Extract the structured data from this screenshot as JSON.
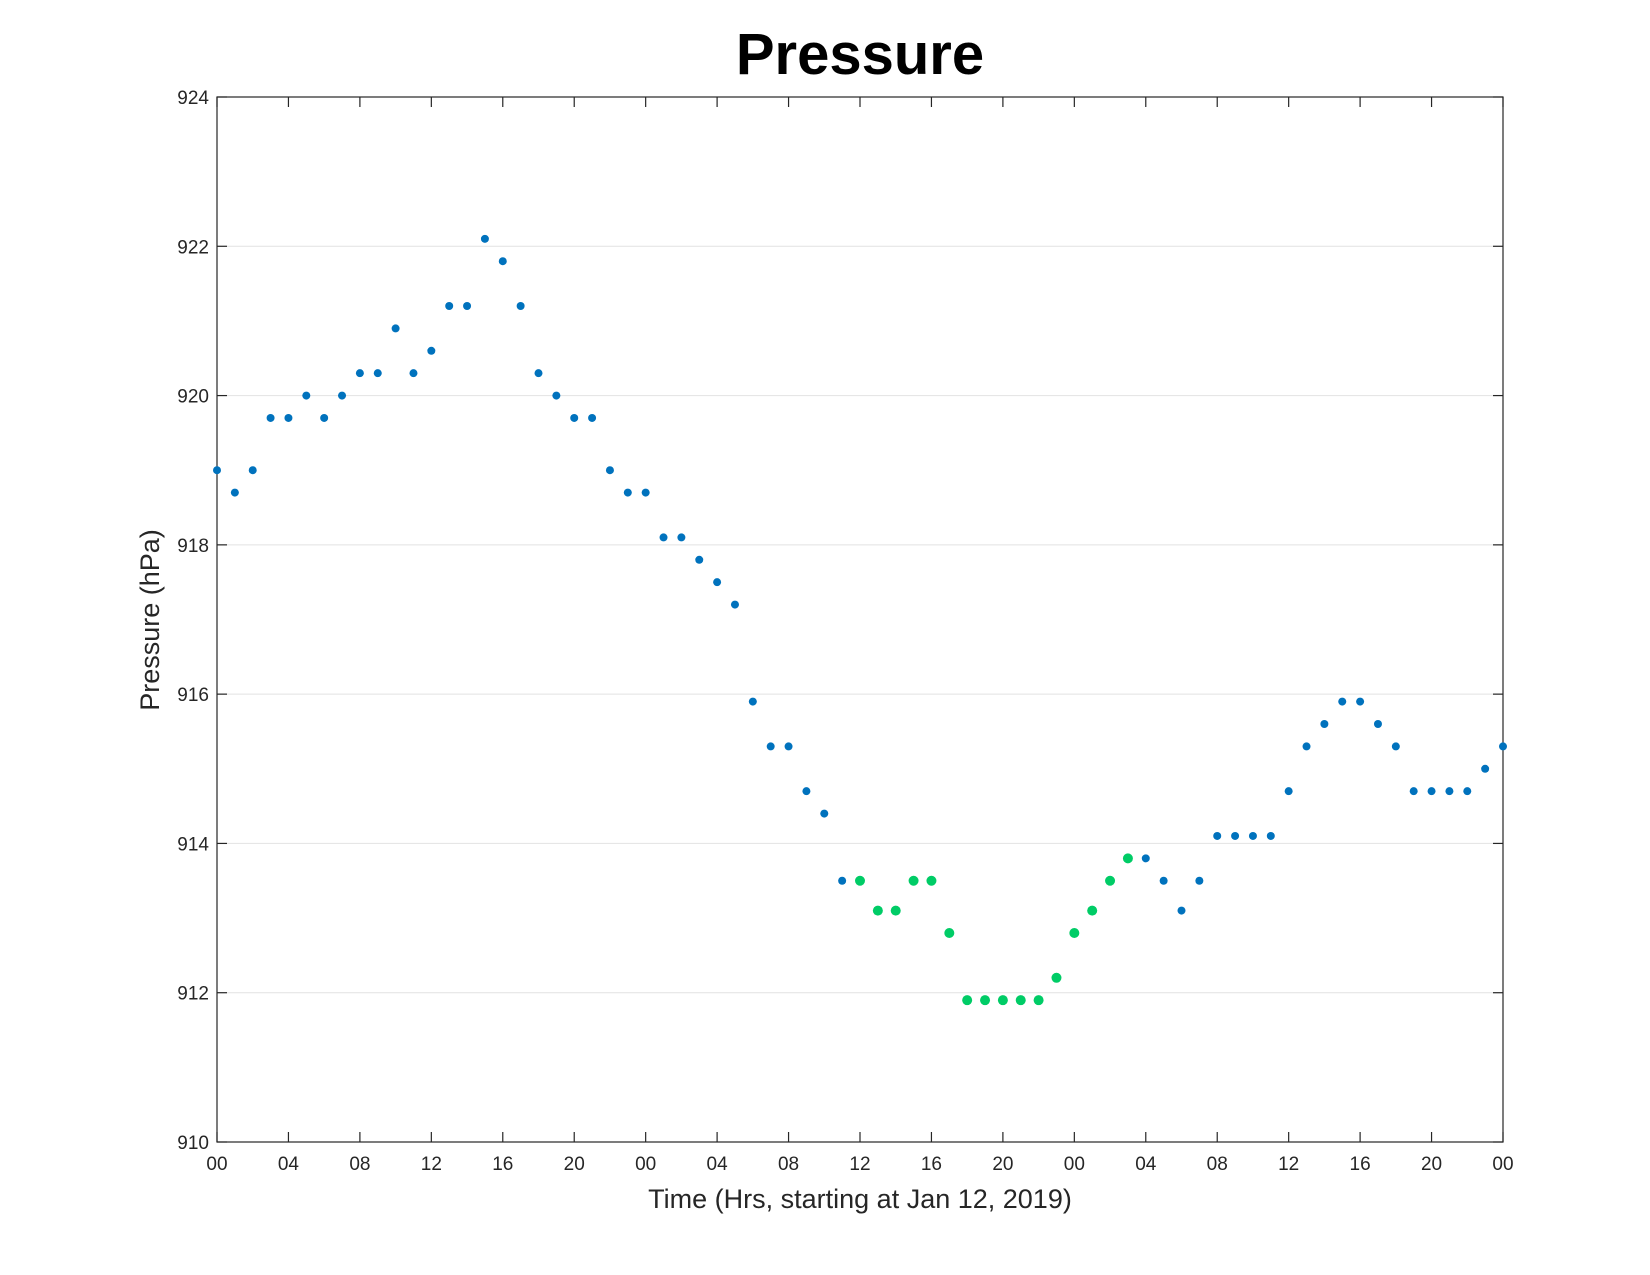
{
  "chart_data": {
    "type": "scatter",
    "title": "Pressure",
    "xlabel": "Time (Hrs, starting at Jan 12, 2019)",
    "ylabel": "Pressure (hPa)",
    "xlim": [
      0,
      72
    ],
    "ylim": [
      910,
      924
    ],
    "grid": "horizontal",
    "x_ticks": [
      0,
      4,
      8,
      12,
      16,
      20,
      24,
      28,
      32,
      36,
      40,
      44,
      48,
      52,
      56,
      60,
      64,
      68,
      72
    ],
    "x_tick_labels": [
      "00",
      "04",
      "08",
      "12",
      "16",
      "20",
      "00",
      "04",
      "08",
      "12",
      "16",
      "20",
      "00",
      "04",
      "08",
      "12",
      "16",
      "20",
      "00"
    ],
    "y_ticks": [
      910,
      912,
      914,
      916,
      918,
      920,
      922,
      924
    ],
    "y_tick_labels": [
      "910",
      "912",
      "914",
      "916",
      "918",
      "920",
      "922",
      "924"
    ],
    "colors": {
      "blue": "#0072BD",
      "green": "#00CC66"
    },
    "points": [
      {
        "x": 0,
        "y": 919.0,
        "color": "blue"
      },
      {
        "x": 1,
        "y": 918.7,
        "color": "blue"
      },
      {
        "x": 2,
        "y": 919.0,
        "color": "blue"
      },
      {
        "x": 3,
        "y": 919.7,
        "color": "blue"
      },
      {
        "x": 4,
        "y": 919.7,
        "color": "blue"
      },
      {
        "x": 5,
        "y": 920.0,
        "color": "blue"
      },
      {
        "x": 6,
        "y": 919.7,
        "color": "blue"
      },
      {
        "x": 7,
        "y": 920.0,
        "color": "blue"
      },
      {
        "x": 8,
        "y": 920.3,
        "color": "blue"
      },
      {
        "x": 9,
        "y": 920.3,
        "color": "blue"
      },
      {
        "x": 10,
        "y": 920.9,
        "color": "blue"
      },
      {
        "x": 11,
        "y": 920.3,
        "color": "blue"
      },
      {
        "x": 12,
        "y": 920.6,
        "color": "blue"
      },
      {
        "x": 13,
        "y": 921.2,
        "color": "blue"
      },
      {
        "x": 14,
        "y": 921.2,
        "color": "blue"
      },
      {
        "x": 15,
        "y": 922.1,
        "color": "blue"
      },
      {
        "x": 16,
        "y": 921.8,
        "color": "blue"
      },
      {
        "x": 17,
        "y": 921.2,
        "color": "blue"
      },
      {
        "x": 18,
        "y": 920.3,
        "color": "blue"
      },
      {
        "x": 19,
        "y": 920.0,
        "color": "blue"
      },
      {
        "x": 20,
        "y": 919.7,
        "color": "blue"
      },
      {
        "x": 21,
        "y": 919.7,
        "color": "blue"
      },
      {
        "x": 22,
        "y": 919.0,
        "color": "blue"
      },
      {
        "x": 23,
        "y": 918.7,
        "color": "blue"
      },
      {
        "x": 24,
        "y": 918.7,
        "color": "blue"
      },
      {
        "x": 25,
        "y": 918.1,
        "color": "blue"
      },
      {
        "x": 26,
        "y": 918.1,
        "color": "blue"
      },
      {
        "x": 27,
        "y": 917.8,
        "color": "blue"
      },
      {
        "x": 28,
        "y": 917.5,
        "color": "blue"
      },
      {
        "x": 29,
        "y": 917.2,
        "color": "blue"
      },
      {
        "x": 30,
        "y": 915.9,
        "color": "blue"
      },
      {
        "x": 31,
        "y": 915.3,
        "color": "blue"
      },
      {
        "x": 32,
        "y": 915.3,
        "color": "blue"
      },
      {
        "x": 33,
        "y": 914.7,
        "color": "blue"
      },
      {
        "x": 34,
        "y": 914.4,
        "color": "blue"
      },
      {
        "x": 35,
        "y": 913.5,
        "color": "blue"
      },
      {
        "x": 36,
        "y": 913.5,
        "color": "green"
      },
      {
        "x": 37,
        "y": 913.1,
        "color": "green"
      },
      {
        "x": 38,
        "y": 913.1,
        "color": "green"
      },
      {
        "x": 39,
        "y": 913.5,
        "color": "green"
      },
      {
        "x": 40,
        "y": 913.5,
        "color": "green"
      },
      {
        "x": 41,
        "y": 912.8,
        "color": "green"
      },
      {
        "x": 42,
        "y": 911.9,
        "color": "green"
      },
      {
        "x": 43,
        "y": 911.9,
        "color": "green"
      },
      {
        "x": 44,
        "y": 911.9,
        "color": "green"
      },
      {
        "x": 45,
        "y": 911.9,
        "color": "green"
      },
      {
        "x": 46,
        "y": 911.9,
        "color": "green"
      },
      {
        "x": 47,
        "y": 912.2,
        "color": "green"
      },
      {
        "x": 48,
        "y": 912.8,
        "color": "green"
      },
      {
        "x": 49,
        "y": 913.1,
        "color": "green"
      },
      {
        "x": 50,
        "y": 913.5,
        "color": "green"
      },
      {
        "x": 51,
        "y": 913.8,
        "color": "green"
      },
      {
        "x": 52,
        "y": 913.8,
        "color": "blue"
      },
      {
        "x": 53,
        "y": 913.5,
        "color": "blue"
      },
      {
        "x": 54,
        "y": 913.1,
        "color": "blue"
      },
      {
        "x": 55,
        "y": 913.5,
        "color": "blue"
      },
      {
        "x": 56,
        "y": 914.1,
        "color": "blue"
      },
      {
        "x": 57,
        "y": 914.1,
        "color": "blue"
      },
      {
        "x": 58,
        "y": 914.1,
        "color": "blue"
      },
      {
        "x": 59,
        "y": 914.1,
        "color": "blue"
      },
      {
        "x": 60,
        "y": 914.7,
        "color": "blue"
      },
      {
        "x": 61,
        "y": 915.3,
        "color": "blue"
      },
      {
        "x": 62,
        "y": 915.6,
        "color": "blue"
      },
      {
        "x": 63,
        "y": 915.9,
        "color": "blue"
      },
      {
        "x": 64,
        "y": 915.9,
        "color": "blue"
      },
      {
        "x": 65,
        "y": 915.6,
        "color": "blue"
      },
      {
        "x": 66,
        "y": 915.3,
        "color": "blue"
      },
      {
        "x": 67,
        "y": 914.7,
        "color": "blue"
      },
      {
        "x": 68,
        "y": 914.7,
        "color": "blue"
      },
      {
        "x": 69,
        "y": 914.7,
        "color": "blue"
      },
      {
        "x": 70,
        "y": 914.7,
        "color": "blue"
      },
      {
        "x": 71,
        "y": 915.0,
        "color": "blue"
      },
      {
        "x": 72,
        "y": 915.3,
        "color": "blue"
      }
    ]
  }
}
